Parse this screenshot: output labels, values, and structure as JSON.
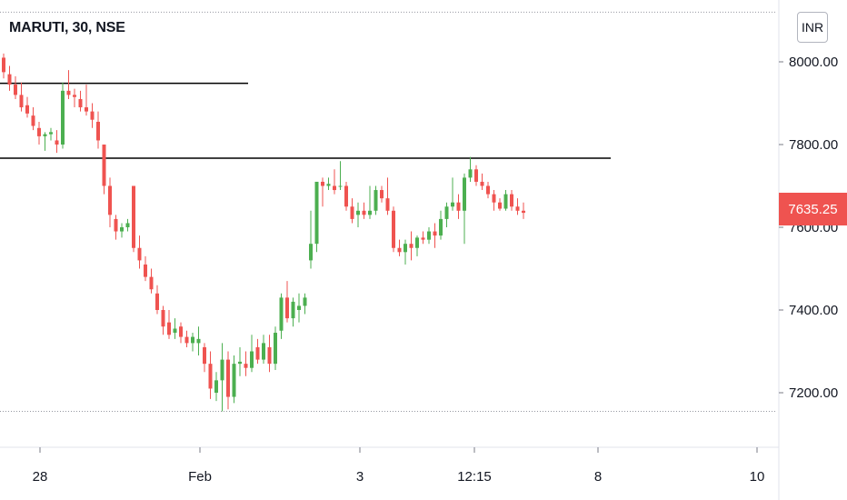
{
  "header": {
    "title": "MARUTI, 30, NSE",
    "currency": "INR"
  },
  "last_price": "7635.25",
  "colors": {
    "up": "#26a69a",
    "up_green": "#4caf50",
    "down": "#ef5350",
    "line": "#000000",
    "grid": "#d1d4dc"
  },
  "chart_data": {
    "type": "candlestick",
    "title": "MARUTI, 30, NSE",
    "y_ticks": [
      "8000.00",
      "7800.00",
      "7600.00",
      "7400.00",
      "7200.00"
    ],
    "x_ticks": [
      "28",
      "Feb",
      "3",
      "12:15",
      "8",
      "10"
    ],
    "ylim": [
      7065,
      8125
    ],
    "horizontal_lines": [
      7948,
      7767
    ],
    "dotted_levels": [
      8120,
      7155
    ],
    "last_price": 7635.25,
    "candles": [
      [
        8010,
        8020,
        7960,
        7975
      ],
      [
        7970,
        7990,
        7930,
        7945
      ],
      [
        7945,
        7965,
        7910,
        7920
      ],
      [
        7920,
        7950,
        7880,
        7890
      ],
      [
        7895,
        7915,
        7865,
        7875
      ],
      [
        7870,
        7890,
        7835,
        7845
      ],
      [
        7840,
        7855,
        7800,
        7820
      ],
      [
        7820,
        7830,
        7785,
        7825
      ],
      [
        7825,
        7840,
        7810,
        7830
      ],
      [
        7810,
        7835,
        7780,
        7800
      ],
      [
        7800,
        7950,
        7790,
        7930
      ],
      [
        7930,
        7980,
        7910,
        7920
      ],
      [
        7920,
        7935,
        7890,
        7915
      ],
      [
        7910,
        7930,
        7880,
        7890
      ],
      [
        7890,
        7945,
        7870,
        7880
      ],
      [
        7880,
        7900,
        7840,
        7860
      ],
      [
        7855,
        7880,
        7790,
        7810
      ],
      [
        7800,
        7790,
        7680,
        7700
      ],
      [
        7700,
        7720,
        7600,
        7630
      ],
      [
        7620,
        7630,
        7570,
        7590
      ],
      [
        7590,
        7610,
        7575,
        7600
      ],
      [
        7600,
        7620,
        7590,
        7610
      ],
      [
        7700,
        7700,
        7540,
        7550
      ],
      [
        7550,
        7580,
        7500,
        7520
      ],
      [
        7510,
        7530,
        7470,
        7480
      ],
      [
        7480,
        7500,
        7440,
        7450
      ],
      [
        7440,
        7460,
        7390,
        7400
      ],
      [
        7400,
        7410,
        7340,
        7360
      ],
      [
        7370,
        7400,
        7330,
        7340
      ],
      [
        7345,
        7380,
        7330,
        7355
      ],
      [
        7360,
        7370,
        7320,
        7335
      ],
      [
        7335,
        7350,
        7310,
        7320
      ],
      [
        7320,
        7345,
        7300,
        7335
      ],
      [
        7320,
        7360,
        7290,
        7330
      ],
      [
        7310,
        7320,
        7250,
        7270
      ],
      [
        7270,
        7300,
        7185,
        7210
      ],
      [
        7200,
        7250,
        7180,
        7230
      ],
      [
        7230,
        7320,
        7155,
        7280
      ],
      [
        7280,
        7300,
        7160,
        7190
      ],
      [
        7190,
        7290,
        7175,
        7270
      ],
      [
        7270,
        7310,
        7240,
        7275
      ],
      [
        7270,
        7300,
        7240,
        7260
      ],
      [
        7260,
        7340,
        7250,
        7300
      ],
      [
        7310,
        7330,
        7270,
        7280
      ],
      [
        7280,
        7340,
        7270,
        7320
      ],
      [
        7310,
        7340,
        7250,
        7270
      ],
      [
        7270,
        7360,
        7255,
        7345
      ],
      [
        7350,
        7440,
        7330,
        7430
      ],
      [
        7430,
        7470,
        7370,
        7380
      ],
      [
        7380,
        7430,
        7360,
        7420
      ],
      [
        7400,
        7440,
        7370,
        7410
      ],
      [
        7410,
        7440,
        7390,
        7430
      ],
      [
        7520,
        7640,
        7500,
        7560
      ],
      [
        7560,
        7710,
        7540,
        7710
      ],
      [
        7710,
        7720,
        7650,
        7700
      ],
      [
        7700,
        7720,
        7690,
        7705
      ],
      [
        7700,
        7740,
        7680,
        7690
      ],
      [
        7700,
        7760,
        7690,
        7700
      ],
      [
        7700,
        7710,
        7640,
        7650
      ],
      [
        7650,
        7670,
        7610,
        7620
      ],
      [
        7630,
        7660,
        7600,
        7640
      ],
      [
        7640,
        7660,
        7620,
        7630
      ],
      [
        7630,
        7700,
        7620,
        7640
      ],
      [
        7640,
        7700,
        7630,
        7690
      ],
      [
        7690,
        7700,
        7660,
        7670
      ],
      [
        7670,
        7720,
        7630,
        7640
      ],
      [
        7640,
        7650,
        7540,
        7550
      ],
      [
        7550,
        7570,
        7530,
        7540
      ],
      [
        7540,
        7570,
        7510,
        7560
      ],
      [
        7560,
        7590,
        7520,
        7550
      ],
      [
        7550,
        7580,
        7530,
        7575
      ],
      [
        7575,
        7590,
        7560,
        7570
      ],
      [
        7570,
        7600,
        7560,
        7590
      ],
      [
        7590,
        7610,
        7550,
        7580
      ],
      [
        7580,
        7640,
        7570,
        7620
      ],
      [
        7620,
        7660,
        7600,
        7650
      ],
      [
        7650,
        7720,
        7640,
        7660
      ],
      [
        7660,
        7680,
        7620,
        7640
      ],
      [
        7640,
        7730,
        7560,
        7720
      ],
      [
        7720,
        7770,
        7710,
        7740
      ],
      [
        7740,
        7750,
        7700,
        7710
      ],
      [
        7710,
        7730,
        7690,
        7700
      ],
      [
        7700,
        7710,
        7670,
        7680
      ],
      [
        7680,
        7690,
        7640,
        7660
      ],
      [
        7660,
        7670,
        7640,
        7645
      ],
      [
        7645,
        7690,
        7640,
        7680
      ],
      [
        7680,
        7690,
        7640,
        7650
      ],
      [
        7650,
        7670,
        7630,
        7640
      ],
      [
        7640,
        7660,
        7620,
        7635
      ]
    ]
  }
}
